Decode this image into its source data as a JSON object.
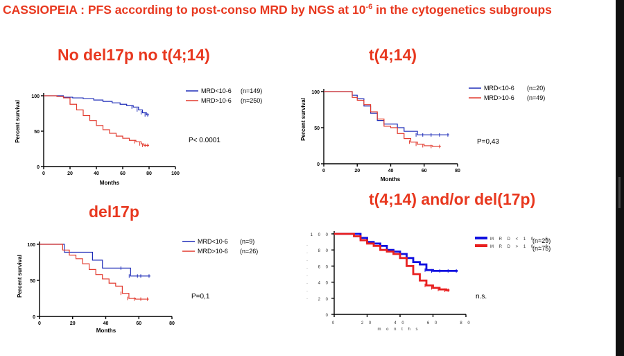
{
  "main_title": {
    "prefix": "CASSIOPEIA : PFS according to post-conso MRD by NGS at 10",
    "exponent": "-6",
    "suffix": " in the cytogenetics subgroups"
  },
  "colors": {
    "accent": "#e8381f",
    "series_a": "#1f2db8",
    "series_b": "#e23a2e",
    "thick_blue": "#1010e0",
    "thick_red": "#e82020"
  },
  "chart_data": [
    {
      "type": "line",
      "title": "No del17p no t(4;14)",
      "ylabel": "Percent survival",
      "xlabel": "Months",
      "xlim": [
        0,
        100
      ],
      "ylim": [
        0,
        100
      ],
      "xticks": [
        "0",
        "20",
        "40",
        "60",
        "80",
        "100"
      ],
      "yticks": [
        "0",
        "50",
        "100"
      ],
      "series": [
        {
          "name": "MRD<10-6",
          "n": "(n=149)",
          "x": [
            0,
            8,
            15,
            22,
            30,
            38,
            45,
            52,
            58,
            63,
            68,
            72,
            75,
            78,
            80
          ],
          "values": [
            100,
            100,
            98,
            97,
            96,
            94,
            92,
            90,
            88,
            86,
            84,
            80,
            76,
            73,
            73
          ]
        },
        {
          "name": "MRD>10-6",
          "n": "(n=250)",
          "x": [
            0,
            5,
            10,
            15,
            20,
            25,
            30,
            35,
            40,
            45,
            50,
            55,
            60,
            65,
            70,
            74,
            76,
            78,
            80
          ],
          "values": [
            100,
            100,
            99,
            97,
            88,
            80,
            72,
            65,
            58,
            52,
            47,
            43,
            40,
            37,
            35,
            32,
            30,
            30,
            30
          ]
        }
      ],
      "stat": "P< 0.0001"
    },
    {
      "type": "line",
      "title": "t(4;14)",
      "ylabel": "Percent survival",
      "xlabel": "Months",
      "xlim": [
        0,
        80
      ],
      "ylim": [
        0,
        100
      ],
      "xticks": [
        "0",
        "20",
        "40",
        "60",
        "80"
      ],
      "yticks": [
        "0",
        "50",
        "100"
      ],
      "series": [
        {
          "name": "MRD<10-6",
          "n": "(n=20)",
          "x": [
            0,
            12,
            17,
            20,
            24,
            28,
            32,
            36,
            40,
            44,
            48,
            52,
            56,
            60,
            65,
            70,
            75
          ],
          "values": [
            100,
            100,
            95,
            90,
            80,
            70,
            60,
            55,
            55,
            50,
            45,
            45,
            40,
            40,
            40,
            40,
            40
          ]
        },
        {
          "name": "MRD>10-6",
          "n": "(n=49)",
          "x": [
            0,
            12,
            17,
            20,
            24,
            28,
            32,
            36,
            40,
            44,
            48,
            52,
            56,
            60,
            65,
            70
          ],
          "values": [
            100,
            100,
            92,
            88,
            82,
            72,
            62,
            52,
            50,
            42,
            35,
            30,
            27,
            25,
            24,
            24
          ]
        }
      ],
      "stat": "P=0,43"
    },
    {
      "type": "line",
      "title": "del17p",
      "ylabel": "Percent survival",
      "xlabel": "Months",
      "xlim": [
        0,
        80
      ],
      "ylim": [
        0,
        100
      ],
      "xticks": [
        "0",
        "20",
        "40",
        "60",
        "80"
      ],
      "yticks": [
        "0",
        "50",
        "100"
      ],
      "series": [
        {
          "name": "MRD<10-6",
          "n": "(n=9)",
          "x": [
            0,
            12,
            15,
            25,
            32,
            38,
            45,
            50,
            55,
            60,
            62,
            67
          ],
          "values": [
            100,
            100,
            89,
            89,
            78,
            67,
            67,
            67,
            56,
            56,
            56,
            56
          ]
        },
        {
          "name": "MRD>10-6",
          "n": "(n=26)",
          "x": [
            0,
            14,
            18,
            22,
            26,
            30,
            34,
            38,
            42,
            46,
            50,
            54,
            58,
            62,
            66
          ],
          "values": [
            100,
            92,
            85,
            80,
            73,
            65,
            58,
            52,
            46,
            42,
            32,
            25,
            24,
            24,
            24
          ]
        }
      ],
      "stat": "P=0,1"
    },
    {
      "type": "line",
      "title": "t(4;14) and/or del(17p)",
      "ylabel": "",
      "xlabel": "m o n t h s",
      "xlim": [
        0,
        80
      ],
      "ylim": [
        0,
        100
      ],
      "xticks": [
        "0",
        "2 0",
        "4 0",
        "6 0",
        "8 0"
      ],
      "yticks": [
        "0",
        "2 0",
        "4 0",
        "6 0",
        "8 0",
        "1 0 0"
      ],
      "series": [
        {
          "name": "M R D  < 1 0 - 6",
          "n": "(n=29)",
          "x": [
            0,
            12,
            16,
            20,
            24,
            28,
            32,
            36,
            40,
            44,
            48,
            52,
            56,
            60,
            65,
            70,
            75
          ],
          "values": [
            100,
            100,
            95,
            90,
            88,
            85,
            80,
            78,
            75,
            70,
            65,
            62,
            55,
            54,
            54,
            54,
            54
          ]
        },
        {
          "name": "M R D  > 1 0 - 6",
          "n": "(n=75)",
          "x": [
            0,
            12,
            16,
            20,
            24,
            28,
            32,
            36,
            40,
            44,
            48,
            52,
            56,
            60,
            64,
            68,
            70
          ],
          "values": [
            100,
            97,
            92,
            88,
            85,
            80,
            78,
            75,
            70,
            60,
            50,
            42,
            36,
            33,
            31,
            30,
            30
          ]
        }
      ],
      "stat": "n.s."
    }
  ]
}
